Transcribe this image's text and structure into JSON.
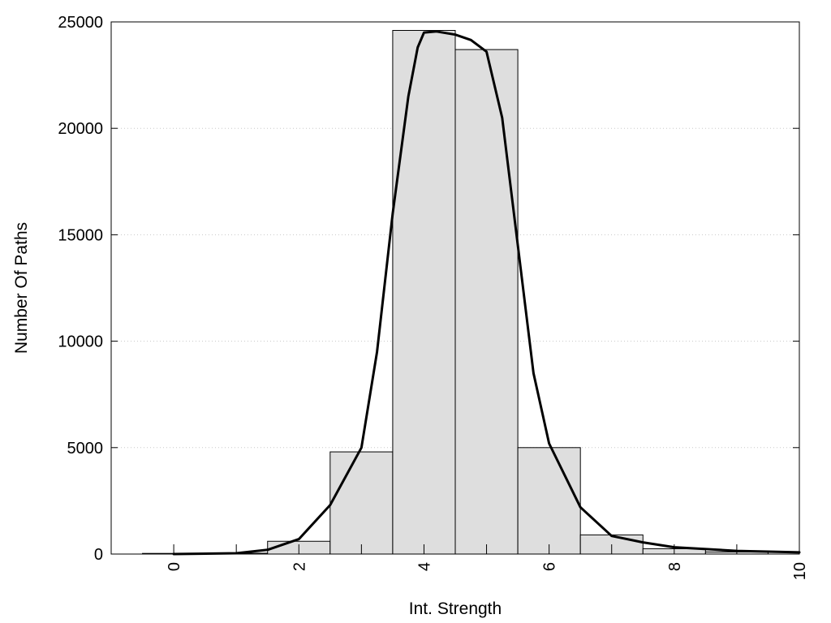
{
  "chart_data": {
    "type": "bar",
    "title": "",
    "xlabel": "Int. Strength",
    "ylabel": "Number Of Paths",
    "xlim": [
      -1,
      10
    ],
    "ylim": [
      0,
      25000
    ],
    "x_ticks": [
      0,
      2,
      4,
      6,
      8,
      10
    ],
    "y_ticks": [
      0,
      5000,
      10000,
      15000,
      20000,
      25000
    ],
    "grid": "horizontal dotted",
    "legend": "none",
    "bar_width": 1,
    "bar_color": "#dedede",
    "bars": [
      {
        "x": 0,
        "y": 30
      },
      {
        "x": 1,
        "y": 40
      },
      {
        "x": 2,
        "y": 600
      },
      {
        "x": 3,
        "y": 4800
      },
      {
        "x": 4,
        "y": 24600
      },
      {
        "x": 5,
        "y": 23700
      },
      {
        "x": 6,
        "y": 5000
      },
      {
        "x": 7,
        "y": 900
      },
      {
        "x": 8,
        "y": 250
      },
      {
        "x": 9,
        "y": 100
      }
    ],
    "curve": {
      "type": "line",
      "color": "#000000",
      "x": [
        0,
        1,
        1.5,
        2,
        2.5,
        3,
        3.25,
        3.5,
        3.75,
        3.9,
        4.0,
        4.2,
        4.5,
        4.75,
        5.0,
        5.25,
        5.5,
        5.75,
        6.0,
        6.5,
        7.0,
        7.5,
        8.0,
        9.0,
        10.0
      ],
      "y": [
        0,
        40,
        200,
        700,
        2300,
        5000,
        9500,
        16000,
        21500,
        23800,
        24500,
        24550,
        24400,
        24150,
        23600,
        20500,
        14500,
        8500,
        5200,
        2200,
        850,
        550,
        320,
        150,
        80
      ]
    }
  }
}
